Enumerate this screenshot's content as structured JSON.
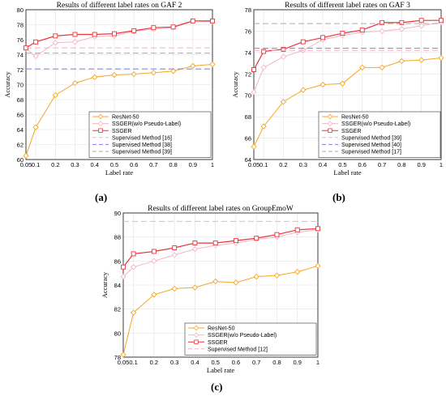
{
  "figure": {
    "panel_labels": [
      "(a)",
      "(b)",
      "(c)"
    ]
  },
  "colors": {
    "resnet": "#f5a623",
    "ssger_wo": "#f2b6c0",
    "ssger": "#e8343a",
    "sup_pink": "#f5b3bd",
    "sup_blue": "#8080e6",
    "sup_gray": "#aaaaaa"
  },
  "chart_data": [
    {
      "type": "line",
      "title": "Results of different label rates on GAF 2",
      "xlabel": "Label rate",
      "ylabel": "Accuracy",
      "x": [
        0.05,
        0.1,
        0.2,
        0.3,
        0.4,
        0.5,
        0.6,
        0.7,
        0.8,
        0.9,
        1
      ],
      "xticks": [
        "0.05",
        "0.1",
        "0.2",
        "0.3",
        "0.4",
        "0.5",
        "0.6",
        "0.7",
        "0.8",
        "0.9",
        "1"
      ],
      "ylim": [
        60,
        80
      ],
      "yticks": [
        60,
        62,
        64,
        66,
        68,
        70,
        72,
        74,
        76,
        78,
        80
      ],
      "grid": true,
      "legend_position": "bottom-right",
      "series": [
        {
          "name": "ResNet-50",
          "style": "resnet",
          "values": [
            60.5,
            64.3,
            68.6,
            70.2,
            71.0,
            71.3,
            71.4,
            71.6,
            71.8,
            72.5,
            72.7
          ]
        },
        {
          "name": "SSGER(w/o Pseudo-Label)",
          "style": "ssger_wo",
          "values": [
            74.8,
            73.8,
            75.6,
            75.7,
            76.4,
            76.5,
            77.1,
            77.4,
            77.6,
            78.5,
            78.4
          ]
        },
        {
          "name": "SSGER",
          "style": "ssger",
          "values": [
            74.9,
            75.7,
            76.5,
            76.7,
            76.7,
            76.8,
            77.2,
            77.6,
            77.7,
            78.5,
            78.5
          ]
        },
        {
          "name": "Supervised Method [16]",
          "style": "sup_pink",
          "constant": 74.9
        },
        {
          "name": "Supervised Method [38]",
          "style": "sup_blue",
          "constant": 72.1
        },
        {
          "name": "Supervised Method [39]",
          "style": "sup_gray",
          "constant": 74.2
        }
      ]
    },
    {
      "type": "line",
      "title": "Results of different label rates on GAF 3",
      "xlabel": "Label rate",
      "ylabel": "Accuracy",
      "x": [
        0.05,
        0.1,
        0.2,
        0.3,
        0.4,
        0.5,
        0.6,
        0.7,
        0.8,
        0.9,
        1
      ],
      "xticks": [
        "0.05",
        "0.1",
        "0.2",
        "0.3",
        "0.4",
        "0.5",
        "0.6",
        "0.7",
        "0.8",
        "0.9",
        "1"
      ],
      "ylim": [
        64,
        78
      ],
      "yticks": [
        64,
        66,
        68,
        70,
        72,
        74,
        76,
        78
      ],
      "grid": true,
      "legend_position": "bottom-right",
      "series": [
        {
          "name": "ResNet-50",
          "style": "resnet",
          "values": [
            65.2,
            67.1,
            69.4,
            70.5,
            71.0,
            71.1,
            72.6,
            72.6,
            73.2,
            73.3,
            73.5
          ]
        },
        {
          "name": "SSGER(w/o Pseudo-Label)",
          "style": "ssger_wo",
          "values": [
            70.3,
            72.6,
            73.6,
            74.2,
            75.2,
            75.6,
            75.9,
            76.0,
            76.2,
            76.5,
            76.8
          ]
        },
        {
          "name": "SSGER",
          "style": "ssger",
          "values": [
            72.4,
            74.1,
            74.3,
            75.0,
            75.4,
            75.8,
            76.1,
            76.8,
            76.8,
            77.0,
            77.0
          ]
        },
        {
          "name": "Supervised Method [39]",
          "style": "sup_pink",
          "constant": 74.2
        },
        {
          "name": "Supervised Method [40]",
          "style": "sup_blue",
          "constant": 74.4
        },
        {
          "name": "Supervised Method [17]",
          "style": "sup_gray",
          "constant": 76.7
        }
      ]
    },
    {
      "type": "line",
      "title": "Results of different label rates on GroupEmoW",
      "xlabel": "Label rate",
      "ylabel": "Accuracy",
      "x": [
        0.05,
        0.1,
        0.2,
        0.3,
        0.4,
        0.5,
        0.6,
        0.7,
        0.8,
        0.9,
        1
      ],
      "xticks": [
        "0.05",
        "0.1",
        "0.2",
        "0.3",
        "0.4",
        "0.5",
        "0.6",
        "0.7",
        "0.8",
        "0.9",
        "1"
      ],
      "ylim": [
        78,
        90
      ],
      "yticks": [
        78,
        80,
        82,
        84,
        86,
        88,
        90
      ],
      "grid": true,
      "legend_position": "bottom-right",
      "series": [
        {
          "name": "ResNet-50",
          "style": "resnet",
          "values": [
            78.2,
            81.7,
            83.2,
            83.7,
            83.8,
            84.3,
            84.2,
            84.7,
            84.8,
            85.1,
            85.6
          ]
        },
        {
          "name": "SSGER(w/o Pseudo-Label)",
          "style": "ssger_wo",
          "values": [
            84.7,
            85.5,
            86.0,
            86.5,
            87.0,
            87.3,
            87.5,
            87.8,
            88.0,
            88.4,
            88.6
          ]
        },
        {
          "name": "SSGER",
          "style": "ssger",
          "values": [
            85.5,
            86.6,
            86.8,
            87.1,
            87.5,
            87.5,
            87.7,
            87.9,
            88.2,
            88.6,
            88.7
          ]
        },
        {
          "name": "Supervised Method [12]",
          "style": "sup_pink",
          "constant": 89.3
        }
      ]
    }
  ]
}
